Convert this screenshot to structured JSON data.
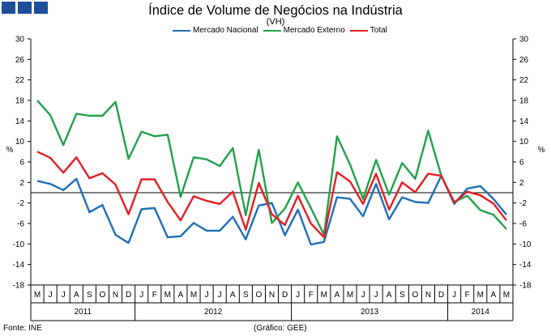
{
  "title": "Índice de Volume de Negócios na Indústria",
  "subtitle": "(VH)",
  "source": "Fonte: INE",
  "credit": "(Gráfico: GEE)",
  "colors": {
    "brand": "#1f4e9a"
  },
  "chart_data": {
    "type": "line",
    "ylabel": "%",
    "ylim": [
      -18,
      30
    ],
    "yticks": [
      30,
      26,
      22,
      18,
      14,
      10,
      6,
      2,
      -2,
      -6,
      -10,
      -14,
      -18
    ],
    "grid": false,
    "legend_position": "top",
    "categories": [
      "M",
      "J",
      "J",
      "A",
      "S",
      "O",
      "N",
      "D",
      "J",
      "F",
      "M",
      "A",
      "M",
      "J",
      "J",
      "A",
      "S",
      "O",
      "N",
      "D",
      "J",
      "F",
      "M",
      "A",
      "M",
      "J",
      "J",
      "A",
      "S",
      "O",
      "N",
      "D",
      "J",
      "F",
      "M",
      "A",
      "M"
    ],
    "year_labels": [
      {
        "label": "2011",
        "start": 0,
        "end": 7
      },
      {
        "label": "2012",
        "start": 8,
        "end": 19
      },
      {
        "label": "2013",
        "start": 20,
        "end": 31
      },
      {
        "label": "2014",
        "start": 32,
        "end": 36
      }
    ],
    "series": [
      {
        "name": "Mercado Nacional",
        "color": "#1f6fb5",
        "values": [
          2.3,
          1.7,
          0.5,
          2.7,
          -3.8,
          -2.4,
          -8.2,
          -9.8,
          -3.2,
          -3.0,
          -8.7,
          -8.5,
          -5.9,
          -7.4,
          -7.4,
          -4.7,
          -9.1,
          -2.5,
          -2.0,
          -8.3,
          -3.3,
          -10.1,
          -9.6,
          -0.9,
          -1.2,
          -4.6,
          1.7,
          -5.2,
          -0.9,
          -1.8,
          -2.0,
          3.3,
          -2.2,
          0.8,
          1.3,
          -1.2,
          -4.3
        ]
      },
      {
        "name": "Mercado Externo",
        "color": "#22a04b",
        "values": [
          18.0,
          15.1,
          9.3,
          15.4,
          15.0,
          15.0,
          17.7,
          6.6,
          11.9,
          11.0,
          11.3,
          -0.8,
          6.9,
          6.5,
          5.2,
          8.7,
          -4.4,
          8.4,
          -5.9,
          -3.1,
          2.0,
          -3.0,
          -8.2,
          11.0,
          5.5,
          -1.2,
          6.4,
          -0.4,
          5.8,
          2.7,
          12.1,
          3.3,
          -1.8,
          -0.6,
          -3.4,
          -4.3,
          -7.1
        ]
      },
      {
        "name": "Total",
        "color": "#e31e24",
        "values": [
          8.0,
          6.8,
          3.9,
          6.9,
          2.8,
          3.8,
          1.6,
          -4.2,
          2.6,
          2.6,
          -1.8,
          -5.4,
          -0.7,
          -1.6,
          -2.2,
          0.2,
          -7.2,
          1.9,
          -4.2,
          -6.3,
          -0.6,
          -6.0,
          -8.7,
          4.0,
          2.2,
          -2.2,
          3.7,
          -3.3,
          2.0,
          0.1,
          3.7,
          3.3,
          -1.9,
          0.2,
          -0.5,
          -2.1,
          -5.4
        ]
      }
    ]
  }
}
